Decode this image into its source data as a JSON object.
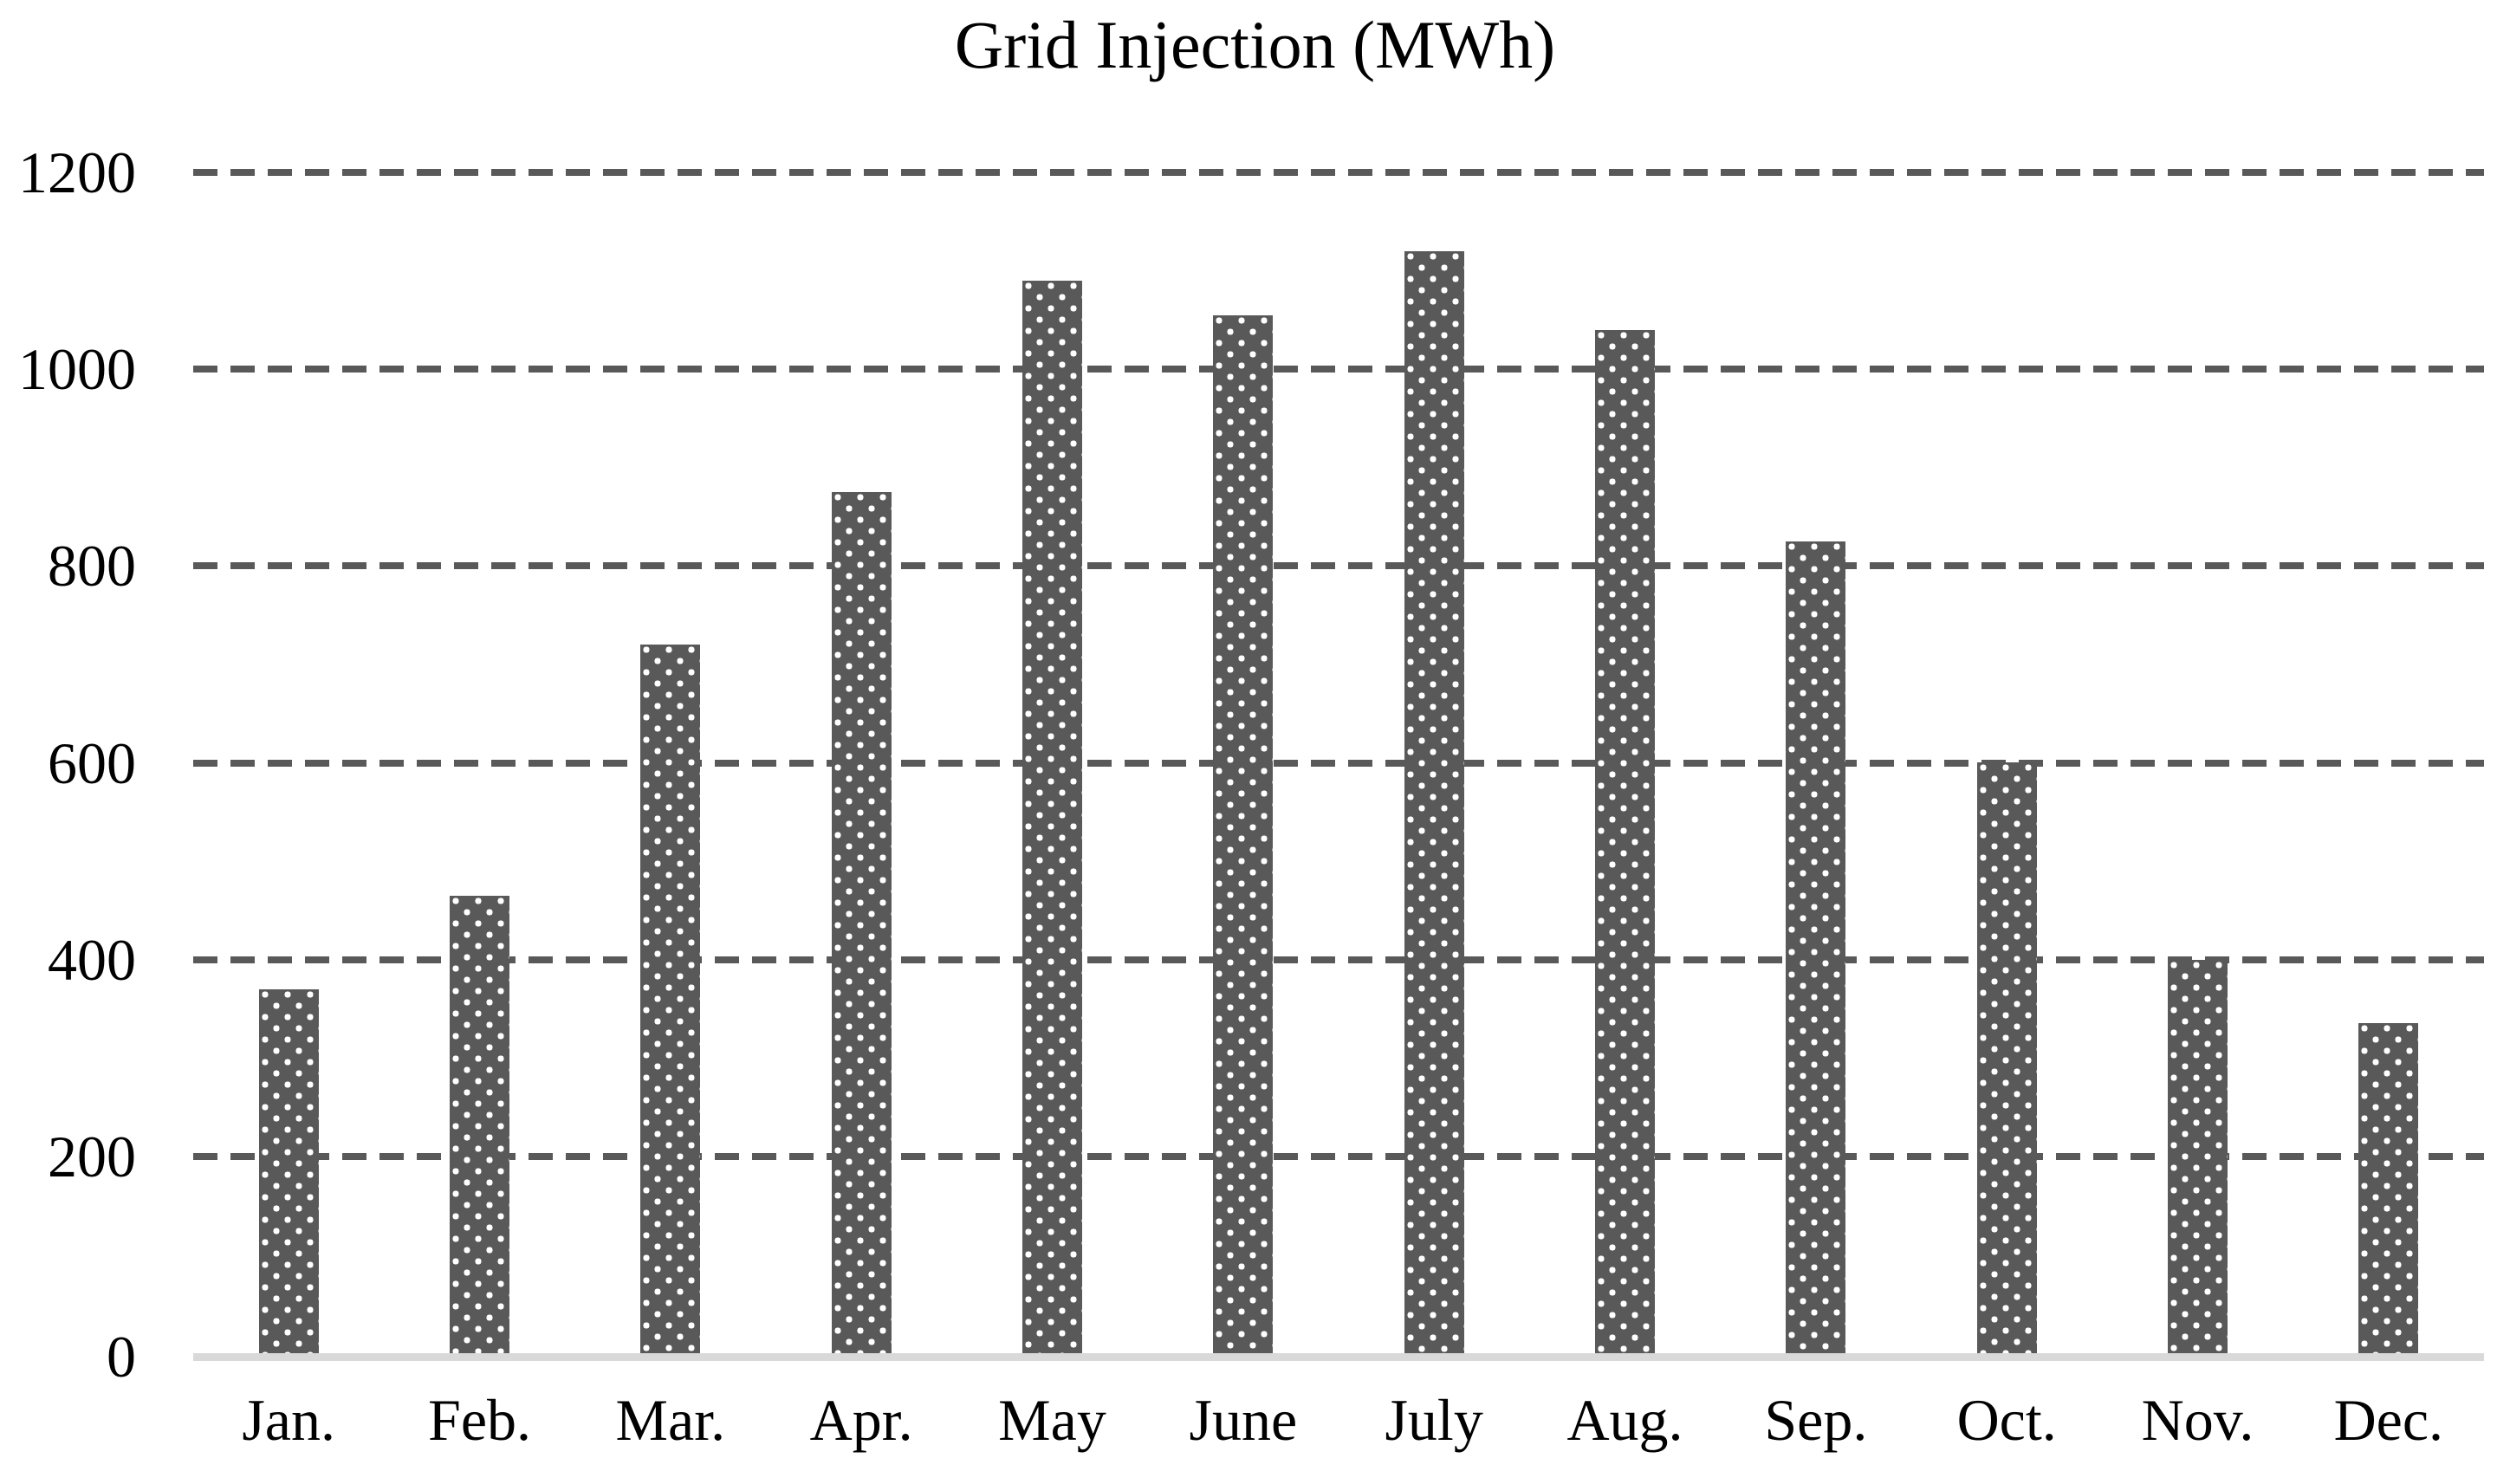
{
  "chart_data": {
    "type": "bar",
    "title": "Grid Injection (MWh)",
    "categories": [
      "Jan.",
      "Feb.",
      "Mar.",
      "Apr.",
      "May",
      "June",
      "July",
      "Aug.",
      "Sep.",
      "Oct.",
      "Nov.",
      "Dec."
    ],
    "values": [
      370,
      465,
      720,
      875,
      1090,
      1055,
      1120,
      1040,
      825,
      600,
      400,
      335
    ],
    "xlabel": "",
    "ylabel": "",
    "ylim": [
      0,
      1200
    ],
    "yticks": [
      0,
      200,
      400,
      600,
      800,
      1000,
      1200
    ],
    "grid": "horizontal-dashed",
    "legend_position": "none",
    "colors": {
      "bar_fill": "#595959",
      "bar_pattern_dots": "#ffffff",
      "gridline": "#595959",
      "baseline": "#d9d9d9",
      "text": "#000000",
      "background": "#ffffff"
    }
  }
}
